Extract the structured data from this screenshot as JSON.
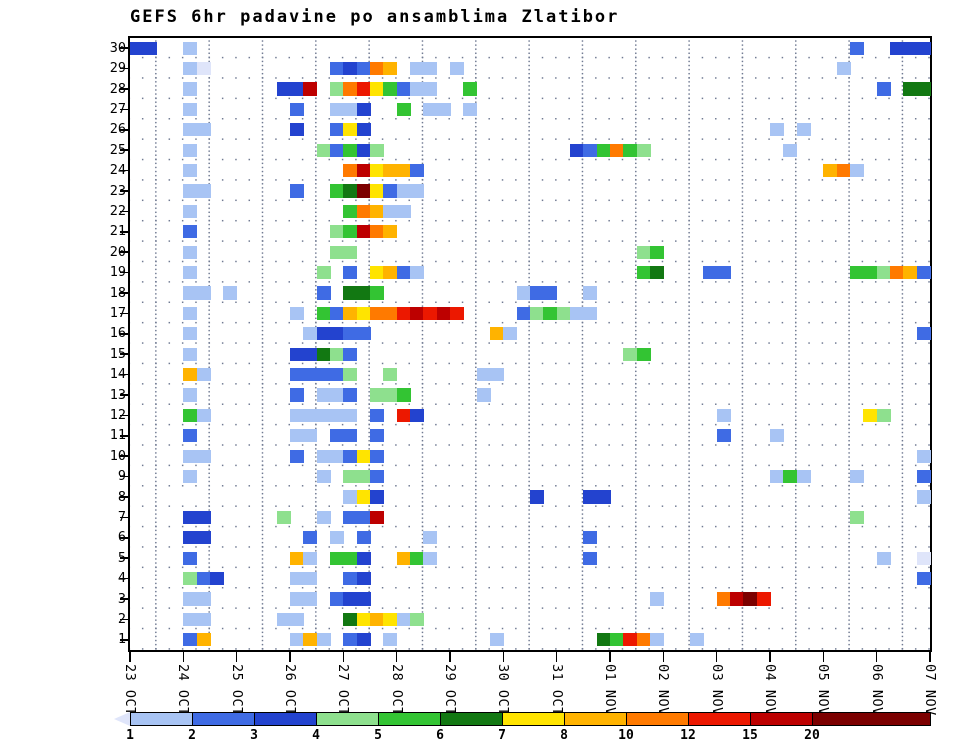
{
  "title": "GEFS 6hr padavine po ansamblima Zlatibor",
  "chart_data": {
    "type": "heatmap",
    "title": "GEFS 6hr padavine po ansamblima Zlatibor",
    "x_axis_note": "time, 6-hour steps, 4 columns per labeled day",
    "columns_per_day": 4,
    "n_columns": 60,
    "n_members": 30,
    "grid": "dotted",
    "legend_position": "bottom",
    "x_labels": [
      "23 OCT",
      "24 OCT",
      "25 OCT",
      "26 OCT",
      "27 OCT",
      "28 OCT",
      "29 OCT",
      "30 OCT",
      "31 OCT",
      "01 NOV",
      "02 NOV",
      "03 NOV",
      "04 NOV",
      "05 NOV",
      "06 NOV",
      "07 NOV"
    ],
    "y_labels": [
      "30",
      "29",
      "28",
      "27",
      "26",
      "25",
      "24",
      "23",
      "22",
      "21",
      "20",
      "19",
      "18",
      "17",
      "16",
      "15",
      "14",
      "13",
      "12",
      "11",
      "10",
      "9",
      "8",
      "7",
      "6",
      "5",
      "4",
      "3",
      "2",
      "1"
    ],
    "legend_labels": [
      "1",
      "2",
      "3",
      "4",
      "5",
      "6",
      "7",
      "8",
      "10",
      "12",
      "15",
      "20"
    ],
    "level_bounds": [
      "<1",
      "1-2",
      "2-3",
      "3-4",
      "4-5",
      "5-6",
      "6-7",
      "7-8",
      "8-10",
      "10-12",
      "12-15",
      "15-20",
      ">20"
    ],
    "palette": [
      "#dfe5fa",
      "#a8c4f4",
      "#3f6be4",
      "#2343cf",
      "#8ee08e",
      "#33c433",
      "#127812",
      "#ffe400",
      "#ffb300",
      "#ff7a00",
      "#ec1800",
      "#bd0000",
      "#7c0000"
    ],
    "cells": [
      [
        30,
        0,
        3
      ],
      [
        30,
        1,
        3
      ],
      [
        30,
        4,
        1
      ],
      [
        30,
        54,
        2
      ],
      [
        30,
        57,
        3
      ],
      [
        30,
        58,
        3
      ],
      [
        30,
        59,
        3
      ],
      [
        29,
        4,
        1
      ],
      [
        29,
        5,
        0
      ],
      [
        29,
        15,
        2
      ],
      [
        29,
        16,
        3
      ],
      [
        29,
        17,
        2
      ],
      [
        29,
        18,
        9
      ],
      [
        29,
        19,
        8
      ],
      [
        29,
        21,
        1
      ],
      [
        29,
        22,
        1
      ],
      [
        29,
        24,
        1
      ],
      [
        29,
        53,
        1
      ],
      [
        28,
        4,
        1
      ],
      [
        28,
        11,
        3
      ],
      [
        28,
        12,
        3
      ],
      [
        28,
        13,
        11
      ],
      [
        28,
        15,
        4
      ],
      [
        28,
        16,
        9
      ],
      [
        28,
        17,
        10
      ],
      [
        28,
        18,
        7
      ],
      [
        28,
        19,
        5
      ],
      [
        28,
        20,
        2
      ],
      [
        28,
        21,
        1
      ],
      [
        28,
        22,
        1
      ],
      [
        28,
        25,
        5
      ],
      [
        28,
        56,
        2
      ],
      [
        28,
        58,
        6
      ],
      [
        28,
        59,
        6
      ],
      [
        27,
        4,
        1
      ],
      [
        27,
        12,
        2
      ],
      [
        27,
        15,
        1
      ],
      [
        27,
        16,
        1
      ],
      [
        27,
        17,
        3
      ],
      [
        27,
        20,
        5
      ],
      [
        27,
        22,
        1
      ],
      [
        27,
        23,
        1
      ],
      [
        27,
        25,
        1
      ],
      [
        26,
        4,
        1
      ],
      [
        26,
        5,
        1
      ],
      [
        26,
        12,
        3
      ],
      [
        26,
        15,
        2
      ],
      [
        26,
        16,
        7
      ],
      [
        26,
        17,
        3
      ],
      [
        26,
        48,
        1
      ],
      [
        26,
        50,
        1
      ],
      [
        25,
        4,
        1
      ],
      [
        25,
        14,
        4
      ],
      [
        25,
        15,
        2
      ],
      [
        25,
        16,
        5
      ],
      [
        25,
        17,
        3
      ],
      [
        25,
        18,
        4
      ],
      [
        25,
        33,
        3
      ],
      [
        25,
        34,
        2
      ],
      [
        25,
        35,
        5
      ],
      [
        25,
        36,
        9
      ],
      [
        25,
        37,
        5
      ],
      [
        25,
        38,
        4
      ],
      [
        25,
        49,
        1
      ],
      [
        24,
        4,
        1
      ],
      [
        24,
        16,
        9
      ],
      [
        24,
        17,
        11
      ],
      [
        24,
        18,
        7
      ],
      [
        24,
        19,
        8
      ],
      [
        24,
        20,
        8
      ],
      [
        24,
        21,
        2
      ],
      [
        24,
        52,
        8
      ],
      [
        24,
        53,
        9
      ],
      [
        24,
        54,
        1
      ],
      [
        23,
        4,
        1
      ],
      [
        23,
        5,
        1
      ],
      [
        23,
        12,
        2
      ],
      [
        23,
        15,
        5
      ],
      [
        23,
        16,
        6
      ],
      [
        23,
        17,
        12
      ],
      [
        23,
        18,
        7
      ],
      [
        23,
        19,
        2
      ],
      [
        23,
        20,
        1
      ],
      [
        23,
        21,
        1
      ],
      [
        22,
        4,
        1
      ],
      [
        22,
        16,
        5
      ],
      [
        22,
        17,
        9
      ],
      [
        22,
        18,
        8
      ],
      [
        22,
        19,
        1
      ],
      [
        22,
        20,
        1
      ],
      [
        21,
        4,
        2
      ],
      [
        21,
        15,
        4
      ],
      [
        21,
        16,
        5
      ],
      [
        21,
        17,
        11
      ],
      [
        21,
        18,
        9
      ],
      [
        21,
        19,
        8
      ],
      [
        20,
        4,
        1
      ],
      [
        20,
        15,
        4
      ],
      [
        20,
        16,
        4
      ],
      [
        20,
        38,
        4
      ],
      [
        20,
        39,
        5
      ],
      [
        19,
        4,
        1
      ],
      [
        19,
        14,
        4
      ],
      [
        19,
        16,
        2
      ],
      [
        19,
        18,
        7
      ],
      [
        19,
        19,
        8
      ],
      [
        19,
        20,
        2
      ],
      [
        19,
        21,
        1
      ],
      [
        19,
        38,
        5
      ],
      [
        19,
        39,
        6
      ],
      [
        19,
        43,
        2
      ],
      [
        19,
        44,
        2
      ],
      [
        19,
        54,
        5
      ],
      [
        19,
        55,
        5
      ],
      [
        19,
        56,
        4
      ],
      [
        19,
        57,
        9
      ],
      [
        19,
        58,
        8
      ],
      [
        19,
        59,
        2
      ],
      [
        18,
        4,
        1
      ],
      [
        18,
        5,
        1
      ],
      [
        18,
        7,
        1
      ],
      [
        18,
        14,
        2
      ],
      [
        18,
        16,
        6
      ],
      [
        18,
        17,
        6
      ],
      [
        18,
        18,
        5
      ],
      [
        18,
        29,
        1
      ],
      [
        18,
        30,
        2
      ],
      [
        18,
        31,
        2
      ],
      [
        18,
        34,
        1
      ],
      [
        17,
        4,
        1
      ],
      [
        17,
        12,
        1
      ],
      [
        17,
        14,
        5
      ],
      [
        17,
        15,
        2
      ],
      [
        17,
        16,
        8
      ],
      [
        17,
        17,
        7
      ],
      [
        17,
        18,
        9
      ],
      [
        17,
        19,
        9
      ],
      [
        17,
        20,
        10
      ],
      [
        17,
        21,
        11
      ],
      [
        17,
        22,
        10
      ],
      [
        17,
        23,
        11
      ],
      [
        17,
        24,
        10
      ],
      [
        17,
        29,
        2
      ],
      [
        17,
        30,
        4
      ],
      [
        17,
        31,
        5
      ],
      [
        17,
        32,
        4
      ],
      [
        17,
        33,
        1
      ],
      [
        17,
        34,
        1
      ],
      [
        16,
        4,
        1
      ],
      [
        16,
        13,
        1
      ],
      [
        16,
        14,
        3
      ],
      [
        16,
        15,
        3
      ],
      [
        16,
        16,
        2
      ],
      [
        16,
        17,
        2
      ],
      [
        16,
        27,
        8
      ],
      [
        16,
        28,
        1
      ],
      [
        16,
        59,
        2
      ],
      [
        15,
        4,
        1
      ],
      [
        15,
        12,
        3
      ],
      [
        15,
        13,
        3
      ],
      [
        15,
        14,
        6
      ],
      [
        15,
        15,
        4
      ],
      [
        15,
        16,
        2
      ],
      [
        15,
        37,
        4
      ],
      [
        15,
        38,
        5
      ],
      [
        14,
        4,
        8
      ],
      [
        14,
        5,
        1
      ],
      [
        14,
        12,
        2
      ],
      [
        14,
        13,
        2
      ],
      [
        14,
        14,
        2
      ],
      [
        14,
        15,
        2
      ],
      [
        14,
        16,
        4
      ],
      [
        14,
        19,
        4
      ],
      [
        14,
        26,
        1
      ],
      [
        14,
        27,
        1
      ],
      [
        13,
        4,
        1
      ],
      [
        13,
        12,
        2
      ],
      [
        13,
        14,
        1
      ],
      [
        13,
        15,
        1
      ],
      [
        13,
        16,
        2
      ],
      [
        13,
        18,
        4
      ],
      [
        13,
        19,
        4
      ],
      [
        13,
        20,
        5
      ],
      [
        13,
        26,
        1
      ],
      [
        12,
        4,
        5
      ],
      [
        12,
        5,
        1
      ],
      [
        12,
        12,
        1
      ],
      [
        12,
        13,
        1
      ],
      [
        12,
        14,
        1
      ],
      [
        12,
        15,
        1
      ],
      [
        12,
        16,
        1
      ],
      [
        12,
        18,
        2
      ],
      [
        12,
        20,
        10
      ],
      [
        12,
        21,
        3
      ],
      [
        12,
        44,
        1
      ],
      [
        12,
        55,
        7
      ],
      [
        12,
        56,
        4
      ],
      [
        11,
        4,
        2
      ],
      [
        11,
        12,
        1
      ],
      [
        11,
        13,
        1
      ],
      [
        11,
        15,
        2
      ],
      [
        11,
        16,
        2
      ],
      [
        11,
        18,
        2
      ],
      [
        11,
        44,
        2
      ],
      [
        11,
        48,
        1
      ],
      [
        10,
        4,
        1
      ],
      [
        10,
        5,
        1
      ],
      [
        10,
        12,
        2
      ],
      [
        10,
        14,
        1
      ],
      [
        10,
        15,
        1
      ],
      [
        10,
        16,
        2
      ],
      [
        10,
        17,
        7
      ],
      [
        10,
        18,
        2
      ],
      [
        10,
        59,
        1
      ],
      [
        9,
        4,
        1
      ],
      [
        9,
        14,
        1
      ],
      [
        9,
        16,
        4
      ],
      [
        9,
        17,
        4
      ],
      [
        9,
        18,
        2
      ],
      [
        9,
        48,
        1
      ],
      [
        9,
        49,
        5
      ],
      [
        9,
        50,
        1
      ],
      [
        9,
        54,
        1
      ],
      [
        9,
        59,
        2
      ],
      [
        8,
        16,
        1
      ],
      [
        8,
        17,
        7
      ],
      [
        8,
        18,
        3
      ],
      [
        8,
        30,
        3
      ],
      [
        8,
        34,
        3
      ],
      [
        8,
        35,
        3
      ],
      [
        8,
        59,
        1
      ],
      [
        7,
        4,
        3
      ],
      [
        7,
        5,
        3
      ],
      [
        7,
        11,
        4
      ],
      [
        7,
        14,
        1
      ],
      [
        7,
        16,
        2
      ],
      [
        7,
        17,
        2
      ],
      [
        7,
        18,
        11
      ],
      [
        7,
        54,
        4
      ],
      [
        6,
        4,
        3
      ],
      [
        6,
        5,
        3
      ],
      [
        6,
        13,
        2
      ],
      [
        6,
        15,
        1
      ],
      [
        6,
        17,
        2
      ],
      [
        6,
        22,
        1
      ],
      [
        6,
        34,
        2
      ],
      [
        5,
        4,
        2
      ],
      [
        5,
        12,
        8
      ],
      [
        5,
        13,
        1
      ],
      [
        5,
        15,
        5
      ],
      [
        5,
        16,
        5
      ],
      [
        5,
        17,
        3
      ],
      [
        5,
        20,
        8
      ],
      [
        5,
        21,
        5
      ],
      [
        5,
        22,
        1
      ],
      [
        5,
        34,
        2
      ],
      [
        5,
        56,
        1
      ],
      [
        5,
        59,
        0
      ],
      [
        4,
        4,
        4
      ],
      [
        4,
        5,
        2
      ],
      [
        4,
        6,
        3
      ],
      [
        4,
        12,
        1
      ],
      [
        4,
        13,
        1
      ],
      [
        4,
        16,
        2
      ],
      [
        4,
        17,
        3
      ],
      [
        4,
        59,
        2
      ],
      [
        3,
        4,
        1
      ],
      [
        3,
        5,
        1
      ],
      [
        3,
        12,
        1
      ],
      [
        3,
        13,
        1
      ],
      [
        3,
        15,
        2
      ],
      [
        3,
        16,
        3
      ],
      [
        3,
        17,
        3
      ],
      [
        3,
        39,
        1
      ],
      [
        3,
        44,
        9
      ],
      [
        3,
        45,
        11
      ],
      [
        3,
        46,
        12
      ],
      [
        3,
        47,
        10
      ],
      [
        2,
        4,
        1
      ],
      [
        2,
        5,
        1
      ],
      [
        2,
        11,
        1
      ],
      [
        2,
        12,
        1
      ],
      [
        2,
        16,
        6
      ],
      [
        2,
        17,
        7
      ],
      [
        2,
        18,
        8
      ],
      [
        2,
        19,
        7
      ],
      [
        2,
        20,
        1
      ],
      [
        2,
        21,
        4
      ],
      [
        1,
        4,
        2
      ],
      [
        1,
        5,
        8
      ],
      [
        1,
        12,
        1
      ],
      [
        1,
        13,
        8
      ],
      [
        1,
        14,
        1
      ],
      [
        1,
        16,
        2
      ],
      [
        1,
        17,
        3
      ],
      [
        1,
        19,
        1
      ],
      [
        1,
        27,
        1
      ],
      [
        1,
        35,
        6
      ],
      [
        1,
        36,
        5
      ],
      [
        1,
        37,
        10
      ],
      [
        1,
        38,
        9
      ],
      [
        1,
        39,
        1
      ],
      [
        1,
        42,
        1
      ]
    ]
  }
}
